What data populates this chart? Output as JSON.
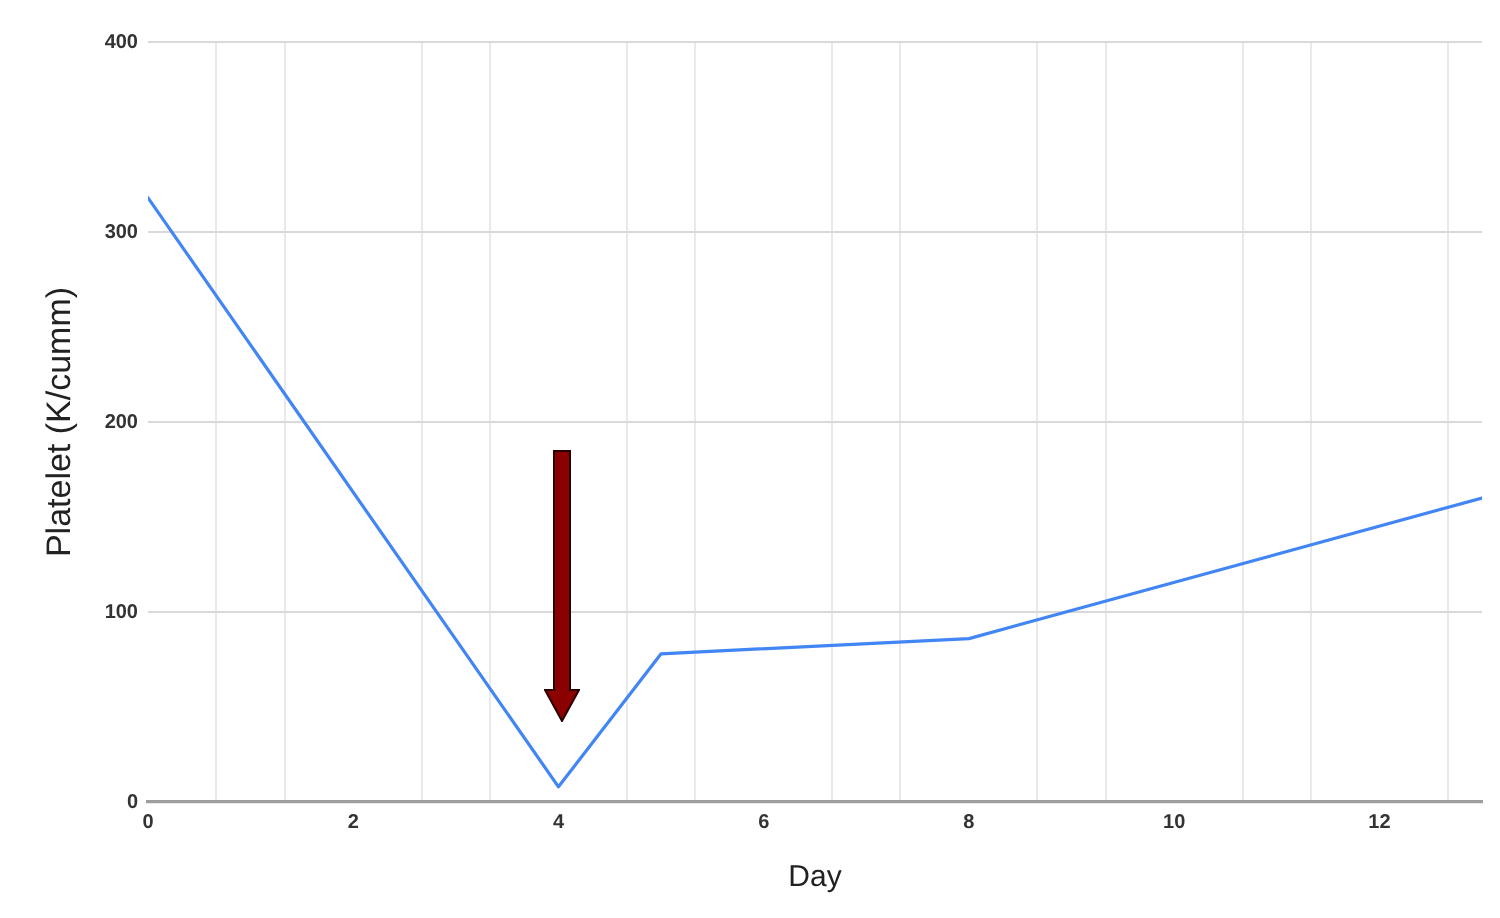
{
  "chart_data": {
    "type": "line",
    "xlabel": "Day",
    "ylabel": "Platelet (K/cumm)",
    "x": [
      0,
      4,
      5,
      8,
      13
    ],
    "series": [
      {
        "color": "#4285f4",
        "values": [
          318,
          8,
          78,
          86,
          160
        ]
      }
    ],
    "xlim": [
      0,
      13
    ],
    "xticks": [
      0,
      {
        "value": 0.667,
        "label": null
      },
      {
        "value": 1.333,
        "label": null
      },
      2,
      {
        "value": 2.667,
        "label": null
      },
      {
        "value": 3.333,
        "label": null
      },
      4,
      {
        "value": 4.667,
        "label": null
      },
      {
        "value": 5.333,
        "label": null
      },
      6,
      {
        "value": 6.667,
        "label": null
      },
      {
        "value": 7.333,
        "label": null
      },
      8,
      {
        "value": 8.667,
        "label": null
      },
      {
        "value": 9.333,
        "label": null
      },
      10,
      {
        "value": 10.667,
        "label": null
      },
      {
        "value": 11.333,
        "label": null
      },
      12,
      {
        "value": 12.667,
        "label": null
      }
    ],
    "ylim": [
      0,
      400
    ],
    "yticks": [
      0,
      100,
      200,
      300,
      400
    ],
    "grid": true
  }
}
